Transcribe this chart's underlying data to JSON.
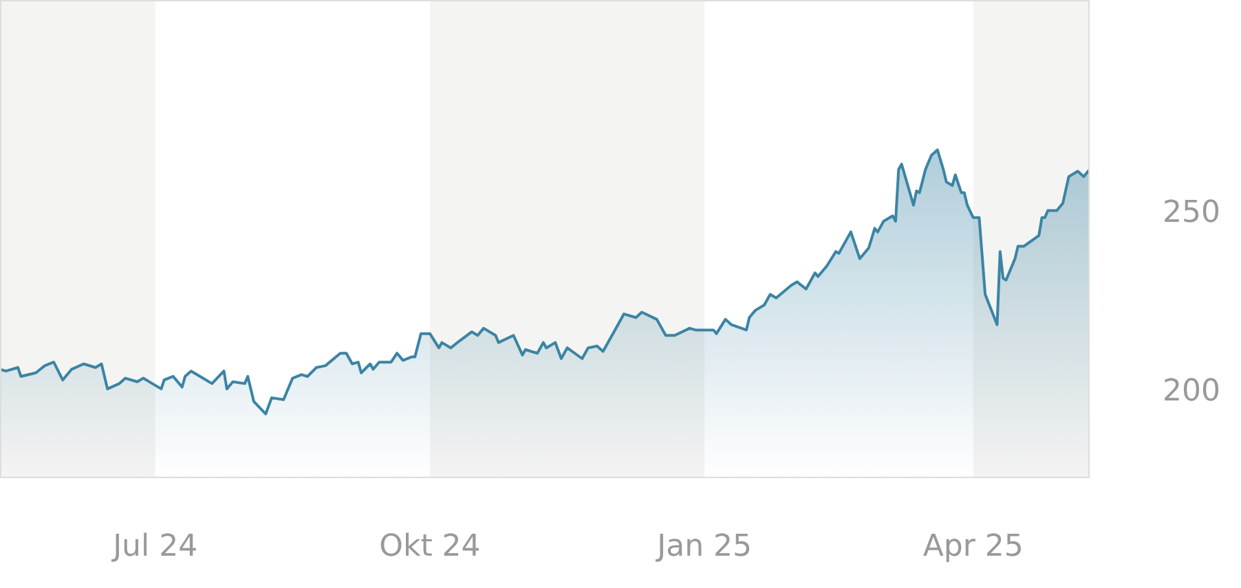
{
  "chart_data": {
    "type": "area",
    "x": [
      "2024-05-10",
      "2024-05-12",
      "2024-05-16",
      "2024-05-17",
      "2024-05-22",
      "2024-05-25",
      "2024-05-28",
      "2024-05-31",
      "2024-06-03",
      "2024-06-07",
      "2024-06-11",
      "2024-06-13",
      "2024-06-15",
      "2024-06-19",
      "2024-06-21",
      "2024-06-25",
      "2024-06-27",
      "2024-06-30",
      "2024-07-03",
      "2024-07-04",
      "2024-07-07",
      "2024-07-10",
      "2024-07-11",
      "2024-07-13",
      "2024-07-17",
      "2024-07-20",
      "2024-07-24",
      "2024-07-25",
      "2024-07-27",
      "2024-07-31",
      "2024-08-01",
      "2024-08-03",
      "2024-08-07",
      "2024-08-09",
      "2024-08-13",
      "2024-08-16",
      "2024-08-19",
      "2024-08-21",
      "2024-08-24",
      "2024-08-27",
      "2024-09-01",
      "2024-09-03",
      "2024-09-05",
      "2024-09-07",
      "2024-09-08",
      "2024-09-11",
      "2024-09-12",
      "2024-09-14",
      "2024-09-18",
      "2024-09-20",
      "2024-09-22",
      "2024-09-25",
      "2024-09-26",
      "2024-09-28",
      "2024-10-01",
      "2024-10-04",
      "2024-10-05",
      "2024-10-08",
      "2024-10-11",
      "2024-10-15",
      "2024-10-17",
      "2024-10-19",
      "2024-10-23",
      "2024-10-24",
      "2024-10-29",
      "2024-11-01",
      "2024-11-02",
      "2024-11-06",
      "2024-11-08",
      "2024-11-09",
      "2024-11-12",
      "2024-11-14",
      "2024-11-16",
      "2024-11-21",
      "2024-11-23",
      "2024-11-26",
      "2024-11-28",
      "2024-11-30",
      "2024-12-02",
      "2024-12-05",
      "2024-12-09",
      "2024-12-11",
      "2024-12-16",
      "2024-12-19",
      "2024-12-22",
      "2024-12-27",
      "2024-12-29",
      "2025-01-04",
      "2025-01-05",
      "2025-01-08",
      "2025-01-10",
      "2025-01-15",
      "2025-01-16",
      "2025-01-18",
      "2025-01-21",
      "2025-01-23",
      "2025-01-25",
      "2025-01-30",
      "2025-02-01",
      "2025-02-04",
      "2025-02-07",
      "2025-02-08",
      "2025-02-11",
      "2025-02-14",
      "2025-02-15",
      "2025-02-19",
      "2025-02-22",
      "2025-02-25",
      "2025-02-27",
      "2025-02-28",
      "2025-03-02",
      "2025-03-05",
      "2025-03-06",
      "2025-03-07",
      "2025-03-08",
      "2025-03-12",
      "2025-03-13",
      "2025-03-14",
      "2025-03-16",
      "2025-03-18",
      "2025-03-20",
      "2025-03-22",
      "2025-03-23",
      "2025-03-25",
      "2025-03-26",
      "2025-03-28",
      "2025-03-29",
      "2025-03-30",
      "2025-04-01",
      "2025-04-03",
      "2025-04-05",
      "2025-04-09",
      "2025-04-10",
      "2025-04-11",
      "2025-04-12",
      "2025-04-15",
      "2025-04-16",
      "2025-04-18",
      "2025-04-23",
      "2025-04-24",
      "2025-04-25",
      "2025-04-26",
      "2025-04-29",
      "2025-05-01",
      "2025-05-03",
      "2025-05-06",
      "2025-05-08",
      "2025-05-10"
    ],
    "series": [
      {
        "color": "#3b84a4",
        "values": [
          206.5,
          206,
          207,
          204.5,
          205.5,
          207.5,
          208.5,
          203.5,
          206.5,
          208,
          207,
          208,
          201,
          202.5,
          204,
          203,
          204,
          202.5,
          201,
          203.5,
          204.5,
          201.5,
          204.5,
          206,
          204,
          202.5,
          206,
          201,
          203,
          202.5,
          204.5,
          197.5,
          194,
          198.5,
          198,
          204,
          205,
          204.5,
          207,
          207.5,
          211,
          211,
          208,
          208.5,
          205.5,
          208,
          206.5,
          208.5,
          208.5,
          211,
          209,
          210,
          210,
          216.5,
          216.5,
          212.5,
          214,
          212.5,
          214.5,
          217,
          216,
          218,
          216,
          214,
          216,
          210.5,
          212,
          211,
          214,
          212.5,
          214,
          209.5,
          212.5,
          209.5,
          212.5,
          213,
          211.5,
          214.5,
          217.5,
          222,
          221,
          222.5,
          220.5,
          216,
          216,
          218,
          217.5,
          217.5,
          216.5,
          220.5,
          219,
          217.5,
          221,
          223,
          224.5,
          227.5,
          226.5,
          230,
          231,
          229,
          233.5,
          232.5,
          235.5,
          239.5,
          239,
          245,
          237.5,
          240.5,
          246,
          245,
          248,
          249.5,
          248,
          262.5,
          264,
          252.5,
          256.5,
          256,
          262.5,
          266.5,
          268,
          262.5,
          259,
          258,
          261,
          256,
          256,
          252.5,
          249,
          249,
          227.5,
          219,
          239.5,
          232,
          231.5,
          237.5,
          241,
          241,
          244,
          249,
          249,
          251,
          251,
          253,
          260.5,
          262,
          260.5,
          262.5
        ]
      }
    ],
    "xlim": [
      "2024-05-10",
      "2025-05-10"
    ],
    "ylim": [
      176,
      310
    ],
    "yticks": [
      200,
      250
    ],
    "xticks": [
      {
        "value": "2024-07-01",
        "label": "Jul 24"
      },
      {
        "value": "2024-10-01",
        "label": "Okt 24"
      },
      {
        "value": "2025-01-01",
        "label": "Jan 25"
      },
      {
        "value": "2025-04-01",
        "label": "Apr 25"
      }
    ],
    "bands": [
      {
        "axis": "x",
        "from": "2024-05-10",
        "to": "2024-07-01",
        "color": "#f4f4f2"
      },
      {
        "axis": "x",
        "from": "2024-10-01",
        "to": "2025-01-01",
        "color": "#f4f4f2"
      },
      {
        "axis": "x",
        "from": "2025-04-01",
        "to": "2025-05-10",
        "color": "#f4f4f2"
      }
    ]
  }
}
